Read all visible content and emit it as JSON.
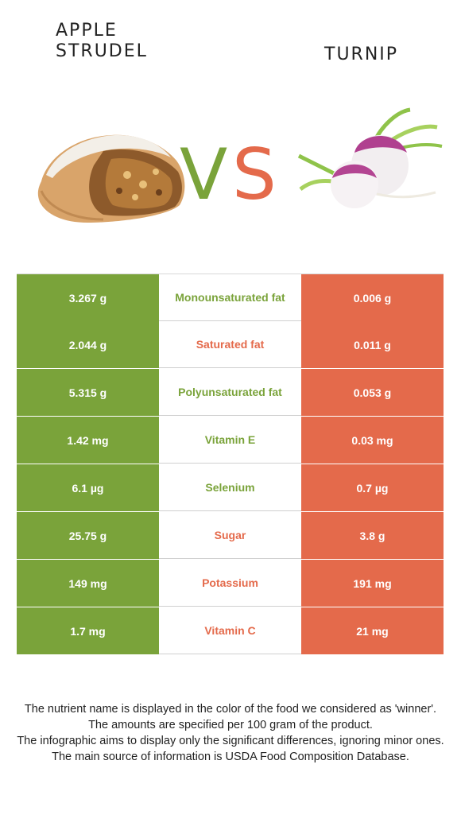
{
  "foods": {
    "left": {
      "name": "APPLE STRUDEL",
      "line1": "APPLE",
      "line2": "STRUDEL",
      "color": "#7aa33a"
    },
    "right": {
      "name": "TURNIP",
      "color": "#e46a4b"
    }
  },
  "vs_label": {
    "v": "V",
    "s": "S"
  },
  "rows": [
    {
      "nutrient": "Monounsaturated fat",
      "left": "3.267 g",
      "right": "0.006 g",
      "winner": "left"
    },
    {
      "nutrient": "Saturated fat",
      "left": "2.044 g",
      "right": "0.011 g",
      "winner": "right"
    },
    {
      "nutrient": "Polyunsaturated fat",
      "left": "5.315 g",
      "right": "0.053 g",
      "winner": "left"
    },
    {
      "nutrient": "Vitamin E",
      "left": "1.42 mg",
      "right": "0.03 mg",
      "winner": "left"
    },
    {
      "nutrient": "Selenium",
      "left": "6.1 µg",
      "right": "0.7 µg",
      "winner": "left"
    },
    {
      "nutrient": "Sugar",
      "left": "25.75 g",
      "right": "3.8 g",
      "winner": "right"
    },
    {
      "nutrient": "Potassium",
      "left": "149 mg",
      "right": "191 mg",
      "winner": "right"
    },
    {
      "nutrient": "Vitamin C",
      "left": "1.7 mg",
      "right": "21 mg",
      "winner": "right"
    }
  ],
  "footer": {
    "line1": "The nutrient name is displayed in the color of the food we considered as 'winner'.",
    "line2": "The amounts are specified per 100 gram of the product.",
    "line3": "The infographic aims to display only the significant differences, ignoring minor ones.",
    "line4": "The main source of information is USDA Food Composition Database."
  }
}
